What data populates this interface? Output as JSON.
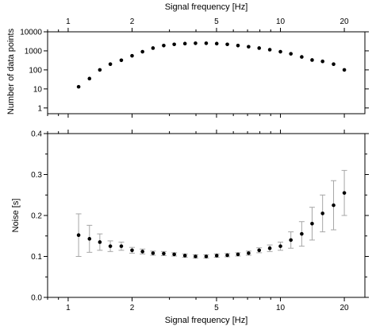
{
  "chart_data": [
    {
      "type": "scatter",
      "xlabel_top": "Signal frequency [Hz]",
      "ylabel": "Number of data points",
      "xscale": "log",
      "yscale": "log",
      "xlim": [
        0.8,
        25
      ],
      "ylim": [
        0.5,
        10000
      ],
      "xticks": [
        1,
        2,
        5,
        10,
        20
      ],
      "yticks": [
        1,
        10,
        100,
        1000,
        10000
      ],
      "grid": false,
      "x": [
        1.12,
        1.26,
        1.41,
        1.58,
        1.78,
        2.0,
        2.24,
        2.51,
        2.82,
        3.16,
        3.55,
        3.98,
        4.47,
        5.01,
        5.62,
        6.31,
        7.08,
        7.94,
        8.91,
        10.0,
        11.2,
        12.6,
        14.1,
        15.8,
        17.8,
        20.0
      ],
      "values": [
        13,
        35,
        100,
        200,
        320,
        550,
        900,
        1400,
        1900,
        2200,
        2400,
        2500,
        2500,
        2400,
        2200,
        1900,
        1650,
        1400,
        1150,
        900,
        700,
        480,
        330,
        280,
        200,
        100
      ]
    },
    {
      "type": "scatter",
      "xlabel": "Signal frequency [Hz]",
      "ylabel": "Noise [s]",
      "xscale": "log",
      "xlim": [
        0.8,
        25
      ],
      "ylim": [
        0.0,
        0.4
      ],
      "xticks": [
        1,
        2,
        5,
        10,
        20
      ],
      "yticks": [
        "0.0",
        "0.1",
        "0.2",
        "0.3",
        "0.4"
      ],
      "grid": false,
      "x": [
        1.12,
        1.26,
        1.41,
        1.58,
        1.78,
        2.0,
        2.24,
        2.51,
        2.82,
        3.16,
        3.55,
        3.98,
        4.47,
        5.01,
        5.62,
        6.31,
        7.08,
        7.94,
        8.91,
        10.0,
        11.2,
        12.6,
        14.1,
        15.8,
        17.8,
        20.0
      ],
      "values": [
        0.152,
        0.143,
        0.135,
        0.125,
        0.125,
        0.115,
        0.112,
        0.108,
        0.107,
        0.105,
        0.102,
        0.1,
        0.1,
        0.102,
        0.103,
        0.105,
        0.108,
        0.115,
        0.12,
        0.125,
        0.14,
        0.155,
        0.18,
        0.205,
        0.225,
        0.255
      ],
      "errors": [
        0.052,
        0.033,
        0.02,
        0.013,
        0.01,
        0.007,
        0.006,
        0.005,
        0.005,
        0.004,
        0.004,
        0.004,
        0.004,
        0.004,
        0.004,
        0.004,
        0.005,
        0.006,
        0.008,
        0.01,
        0.02,
        0.03,
        0.04,
        0.045,
        0.06,
        0.055
      ]
    }
  ]
}
